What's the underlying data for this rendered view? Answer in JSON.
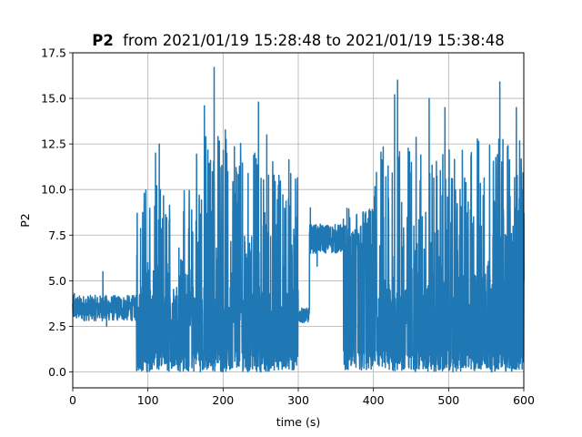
{
  "chart_data": {
    "type": "line",
    "title_bold": "P2",
    "title_rest": "from 2021/01/19 15:28:48 to 2021/01/19 15:38:48",
    "xlabel": "time (s)",
    "ylabel": "P2",
    "xlim": [
      0,
      600
    ],
    "ylim": [
      -0.875,
      17.5
    ],
    "xticks": [
      0,
      100,
      200,
      300,
      400,
      500,
      600
    ],
    "xtick_labels": [
      "0",
      "100",
      "200",
      "300",
      "400",
      "500",
      "600"
    ],
    "yticks": [
      0.0,
      2.5,
      5.0,
      7.5,
      10.0,
      12.5,
      15.0,
      17.5
    ],
    "ytick_labels": [
      "0.0",
      "2.5",
      "5.0",
      "7.5",
      "10.0",
      "12.5",
      "15.0",
      "17.5"
    ],
    "grid": true,
    "legend": "none",
    "series": [
      {
        "color": "#1f77b4",
        "segments": [
          {
            "x": [
              0,
              85
            ],
            "base": 3.5,
            "noise": 0.7,
            "spikes": [
              [
                2,
                4.3
              ],
              [
                40,
                5.5
              ],
              [
                45,
                2.5
              ]
            ]
          },
          {
            "x": [
              85,
              160
            ],
            "base": 3.4,
            "min": 0.0,
            "max": 12.5,
            "oscillating": true,
            "spikes": [
              [
                110,
                12.0
              ],
              [
                115,
                12.5
              ],
              [
                95,
                9.8
              ]
            ]
          },
          {
            "x": [
              160,
              230
            ],
            "base": 3.7,
            "min": 0.0,
            "max": 16.7,
            "oscillating": true,
            "spikes": [
              [
                188,
                16.7
              ],
              [
                175,
                14.6
              ],
              [
                168,
                9.5
              ]
            ]
          },
          {
            "x": [
              230,
              300
            ],
            "base": 3.5,
            "min": 0.0,
            "max": 14.8,
            "oscillating": true,
            "spikes": [
              [
                247,
                14.8
              ],
              [
                258,
                13.0
              ],
              [
                242,
                12.0
              ]
            ]
          },
          {
            "x": [
              300,
              315
            ],
            "base": 3.1,
            "noise": 0.4
          },
          {
            "x": [
              315,
              360
            ],
            "base": 7.3,
            "noise": 0.8,
            "spikes": [
              [
                316,
                9.0
              ],
              [
                325,
                5.8
              ]
            ]
          },
          {
            "x": [
              360,
              400
            ],
            "base": 6.6,
            "min": 0.0,
            "max": 9.8,
            "oscillating": true
          },
          {
            "x": [
              400,
              470
            ],
            "base": 3.6,
            "min": 0.0,
            "max": 16.0,
            "oscillating": true,
            "spikes": [
              [
                432,
                16.0
              ],
              [
                428,
                15.2
              ]
            ]
          },
          {
            "x": [
              470,
              530
            ],
            "base": 3.8,
            "min": 0.0,
            "max": 15.0,
            "oscillating": true,
            "spikes": [
              [
                474,
                15.0
              ],
              [
                495,
                14.5
              ]
            ]
          },
          {
            "x": [
              530,
              600
            ],
            "base": 5.0,
            "min": 0.0,
            "max": 15.9,
            "oscillating": true,
            "spikes": [
              [
                568,
                15.9
              ],
              [
                590,
                14.5
              ],
              [
                600,
                8.7
              ]
            ]
          }
        ]
      }
    ]
  }
}
